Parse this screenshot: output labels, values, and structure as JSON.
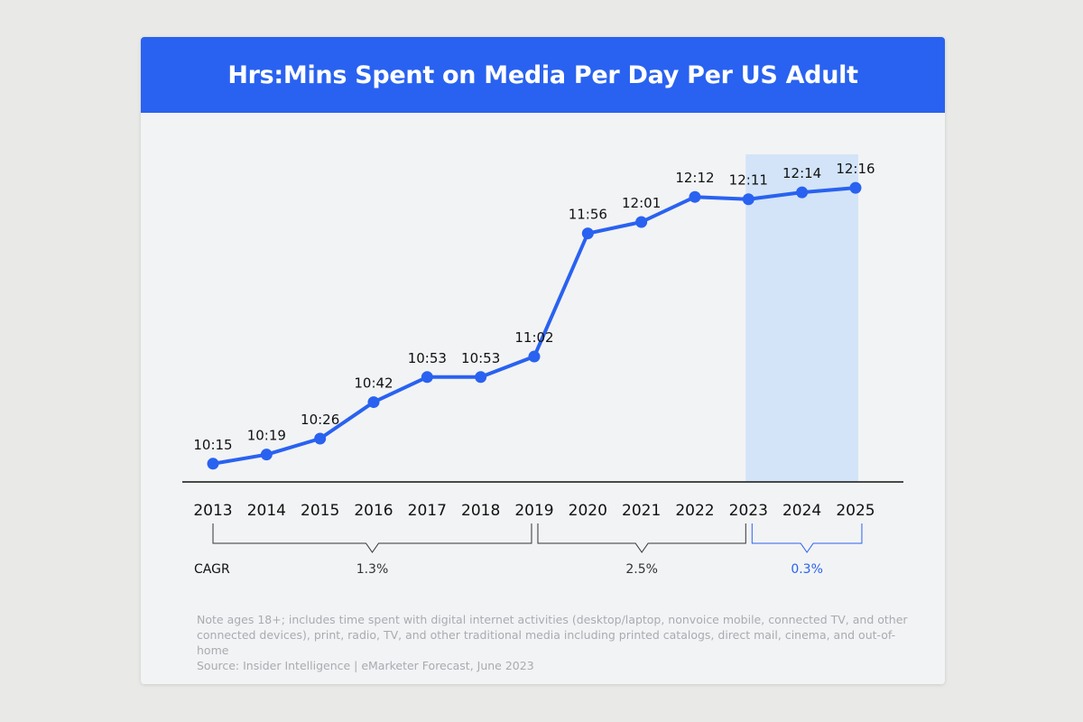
{
  "chart_data": {
    "type": "line",
    "title": "Hrs:Mins Spent on Media Per Day Per US Adult",
    "categories": [
      "2013",
      "2014",
      "2015",
      "2016",
      "2017",
      "2018",
      "2019",
      "2020",
      "2021",
      "2022",
      "2023",
      "2024",
      "2025"
    ],
    "series": [
      {
        "values_minutes": [
          615,
          619,
          626,
          642,
          653,
          653,
          662,
          716,
          721,
          732,
          731,
          734,
          736
        ],
        "labels": [
          "10:15",
          "10:19",
          "10:26",
          "10:42",
          "10:53",
          "10:53",
          "11:02",
          "11:56",
          "12:01",
          "12:12",
          "12:11",
          "12:14",
          "12:16"
        ]
      }
    ],
    "ylim": [
      607,
      740
    ],
    "grid": false,
    "forecast_highlight": [
      "2023",
      "2025"
    ],
    "cagr": {
      "label": "CAGR",
      "ranges": [
        {
          "from": "2013",
          "to": "2019",
          "value": "1.3%",
          "highlight": false
        },
        {
          "from": "2019",
          "to": "2023",
          "value": "2.5%",
          "highlight": false
        },
        {
          "from": "2023",
          "to": "2025",
          "value": "0.3%",
          "highlight": true
        }
      ]
    },
    "colors": {
      "line": "#2962f0",
      "header": "#2962f0",
      "highlight": "#d3e4f8",
      "forecast_text": "#2962f0"
    }
  },
  "notes": [
    "Note ages 18+; includes time spent with digital internet activities (desktop/laptop, nonvoice mobile, connected TV, and other connected devices), print, radio, TV, and other traditional media including printed catalogs, direct mail, cinema, and out-of-home",
    "Source: Insider Intelligence | eMarketer Forecast, June 2023"
  ]
}
